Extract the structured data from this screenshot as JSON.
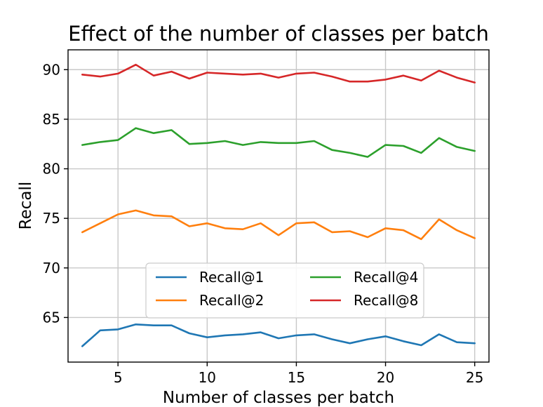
{
  "chart_data": {
    "type": "line",
    "title": "Effect of the number of classes per batch",
    "xlabel": "Number of classes per batch",
    "ylabel": "Recall",
    "xlim": [
      2.2,
      25.8
    ],
    "ylim": [
      60.5,
      92
    ],
    "xticks": [
      5,
      10,
      15,
      20,
      25
    ],
    "yticks": [
      65,
      70,
      75,
      80,
      85,
      90
    ],
    "grid": true,
    "legend": {
      "placement": "lower-center",
      "columns": 2
    },
    "x": [
      3,
      4,
      5,
      6,
      7,
      8,
      9,
      10,
      11,
      12,
      13,
      14,
      15,
      16,
      17,
      18,
      19,
      20,
      21,
      22,
      23,
      24,
      25
    ],
    "series": [
      {
        "name": "Recall@1",
        "color": "#1f77b4",
        "values": [
          62.1,
          63.7,
          63.8,
          64.3,
          64.2,
          64.2,
          63.4,
          63.0,
          63.2,
          63.3,
          63.5,
          62.9,
          63.2,
          63.3,
          62.8,
          62.4,
          62.8,
          63.1,
          62.6,
          62.2,
          63.3,
          62.5,
          62.4
        ]
      },
      {
        "name": "Recall@2",
        "color": "#ff7f0e",
        "values": [
          73.6,
          74.5,
          75.4,
          75.8,
          75.3,
          75.2,
          74.2,
          74.5,
          74.0,
          73.9,
          74.5,
          73.3,
          74.5,
          74.6,
          73.6,
          73.7,
          73.1,
          74.0,
          73.8,
          72.9,
          74.9,
          73.8,
          73.0
        ]
      },
      {
        "name": "Recall@4",
        "color": "#2ca02c",
        "values": [
          82.4,
          82.7,
          82.9,
          84.1,
          83.6,
          83.9,
          82.5,
          82.6,
          82.8,
          82.4,
          82.7,
          82.6,
          82.6,
          82.8,
          81.9,
          81.6,
          81.2,
          82.4,
          82.3,
          81.6,
          83.1,
          82.2,
          81.8
        ]
      },
      {
        "name": "Recall@8",
        "color": "#d62728",
        "values": [
          89.5,
          89.3,
          89.6,
          90.5,
          89.4,
          89.8,
          89.1,
          89.7,
          89.6,
          89.5,
          89.6,
          89.2,
          89.6,
          89.7,
          89.3,
          88.8,
          88.8,
          89.0,
          89.4,
          88.9,
          89.9,
          89.2,
          88.7
        ]
      }
    ]
  }
}
